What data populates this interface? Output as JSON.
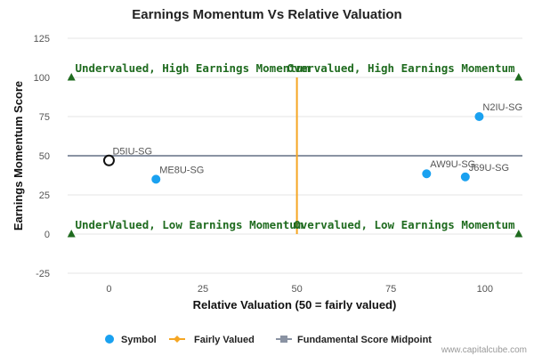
{
  "chart_data": {
    "type": "scatter",
    "title": "Earnings Momentum Vs Relative Valuation",
    "xlabel": "Relative Valuation (50 = fairly valued)",
    "ylabel": "Earnings Momentum Score",
    "xlim": [
      -11,
      110
    ],
    "ylim": [
      -25,
      125
    ],
    "x_ticks": [
      0,
      25,
      50,
      75,
      100
    ],
    "y_ticks": [
      -25,
      0,
      25,
      50,
      75,
      100,
      125
    ],
    "grid": "horizontal",
    "colors": {
      "symbol": "#1aa1f0",
      "fairly_valued": "#f5a623",
      "midpoint": "#8a93a3",
      "quadrant_text": "#1f6b1f",
      "marker_triangle": "#1f6b1f"
    },
    "points": [
      {
        "label": "D5IU-SG",
        "x": 0,
        "y": 47,
        "style": "hollow"
      },
      {
        "label": "ME8U-SG",
        "x": 12.5,
        "y": 35
      },
      {
        "label": "N2IU-SG",
        "x": 98.5,
        "y": 75
      },
      {
        "label": "AW9U-SG",
        "x": 84.5,
        "y": 38.5
      },
      {
        "label": "J69U-SG",
        "x": 94.8,
        "y": 36.5
      }
    ],
    "fairly_valued_line": {
      "x": 50,
      "y_from": 0,
      "y_to": 100
    },
    "midpoint_line": {
      "y": 50,
      "x_from": -11,
      "x_to": 110
    },
    "quadrant_labels": [
      {
        "text": "Undervalued, High Earnings Momentum",
        "x": -9,
        "y": 100,
        "anchor": "start"
      },
      {
        "text": "Overvalued, High Earnings Momentum",
        "x": 108,
        "y": 100,
        "anchor": "end"
      },
      {
        "text": "UnderValued, Low Earnings Momentum",
        "x": -9,
        "y": 0,
        "anchor": "start"
      },
      {
        "text": "Overvalued, Low Earnings Momentum",
        "x": 108,
        "y": 0,
        "anchor": "end"
      }
    ],
    "corner_markers": [
      {
        "x": -10,
        "y": 100
      },
      {
        "x": 109,
        "y": 100
      },
      {
        "x": -10,
        "y": 0
      },
      {
        "x": 109,
        "y": 0
      }
    ],
    "legend": {
      "placement": "bottom",
      "items": [
        {
          "label": "Symbol",
          "kind": "circle",
          "color_key": "symbol"
        },
        {
          "label": "Fairly Valued",
          "kind": "diamond-line",
          "color_key": "fairly_valued"
        },
        {
          "label": "Fundamental Score Midpoint",
          "kind": "square-line",
          "color_key": "midpoint"
        }
      ]
    },
    "credit": "www.capitalcube.com"
  }
}
